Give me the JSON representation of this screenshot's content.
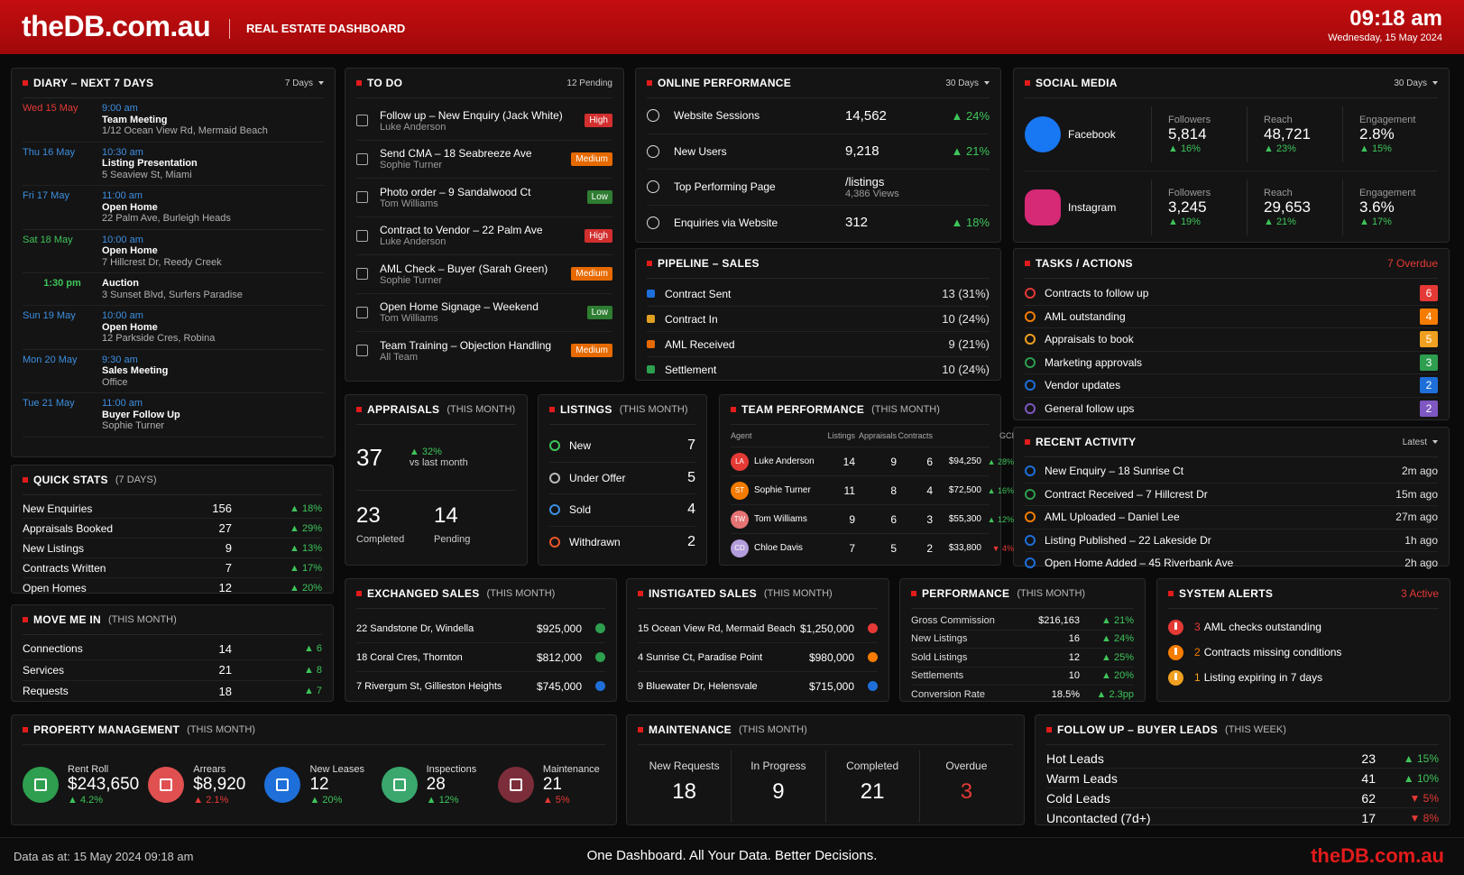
{
  "header": {
    "logo": "theDB.com.au",
    "subtitle": "REAL ESTATE DASHBOARD",
    "time": "09:18 am",
    "date": "Wednesday, 15 May 2024"
  },
  "diary": {
    "title": "DIARY – NEXT 7 DAYS",
    "filter": "7 Days",
    "items": [
      {
        "day": "Wed 15 May",
        "day_color": "#e53935",
        "time": "9:00 am",
        "time_color": "#3d8fe0",
        "event": "Team Meeting",
        "place": "1/12 Ocean View Rd, Mermaid Beach"
      },
      {
        "day": "Thu 16 May",
        "day_color": "#3d8fe0",
        "time": "10:30 am",
        "time_color": "#3d8fe0",
        "event": "Listing Presentation",
        "place": "5 Seaview St, Miami"
      },
      {
        "day": "Fri 17 May",
        "day_color": "#3d8fe0",
        "time": "11:00 am",
        "time_color": "#3d8fe0",
        "event": "Open Home",
        "place": "22 Palm Ave, Burleigh Heads"
      },
      {
        "day": "Sat 18 May",
        "day_color": "#3ec45a",
        "time": "10:00 am",
        "time_color": "#3d8fe0",
        "event": "Open Home",
        "place": "7 Hillcrest Dr, Reedy Creek"
      },
      {
        "time": "1:30 pm",
        "time_color": "#3ec45a",
        "event": "Auction",
        "place": "3 Sunset Blvd, Surfers Paradise"
      },
      {
        "day": "Sun 19 May",
        "day_color": "#3d8fe0",
        "time": "10:00 am",
        "time_color": "#3d8fe0",
        "event": "Open Home",
        "place": "12 Parkside Cres, Robina"
      },
      {
        "day": "Mon 20 May",
        "day_color": "#3d8fe0",
        "time": "9:30 am",
        "time_color": "#3d8fe0",
        "event": "Sales Meeting",
        "place": "Office"
      },
      {
        "day": "Tue 21 May",
        "day_color": "#3d8fe0",
        "time": "11:00 am",
        "time_color": "#3d8fe0",
        "event": "Buyer Follow Up",
        "place": "Sophie Turner"
      }
    ]
  },
  "todo": {
    "title": "TO DO",
    "count": "12 Pending",
    "items": [
      {
        "task": "Follow up – New Enquiry (Jack White)",
        "person": "Luke Anderson",
        "priority": "High",
        "color": "#d32f2f"
      },
      {
        "task": "Send CMA – 18 Seabreeze Ave",
        "person": "Sophie Turner",
        "priority": "Medium",
        "color": "#e66a00"
      },
      {
        "task": "Photo order – 9 Sandalwood Ct",
        "person": "Tom Williams",
        "priority": "Low",
        "color": "#2e7d32"
      },
      {
        "task": "Contract to Vendor – 22 Palm Ave",
        "person": "Luke Anderson",
        "priority": "High",
        "color": "#d32f2f"
      },
      {
        "task": "AML Check – Buyer (Sarah Green)",
        "person": "Sophie Turner",
        "priority": "Medium",
        "color": "#e66a00"
      },
      {
        "task": "Open Home Signage – Weekend",
        "person": "Tom Williams",
        "priority": "Low",
        "color": "#2e7d32"
      },
      {
        "task": "Team Training – Objection Handling",
        "person": "All Team",
        "priority": "Medium",
        "color": "#e66a00"
      }
    ]
  },
  "online": {
    "title": "ONLINE PERFORMANCE",
    "filter": "30 Days",
    "rows": [
      {
        "label": "Website Sessions",
        "value": "14,562",
        "change": "▲ 24%"
      },
      {
        "label": "New Users",
        "value": "9,218",
        "change": "▲ 21%"
      },
      {
        "label": "Top Performing Page",
        "value": "/listings",
        "sub": "4,386 Views"
      },
      {
        "label": "Enquiries via Website",
        "value": "312",
        "change": "▲ 18%"
      }
    ]
  },
  "pipeline": {
    "title": "PIPELINE – SALES",
    "rows": [
      {
        "label": "Contract Sent",
        "value": "13 (31%)",
        "color": "#1e6fd9"
      },
      {
        "label": "Contract In",
        "value": "10 (24%)",
        "color": "#e0a020"
      },
      {
        "label": "AML Received",
        "value": "9 (21%)",
        "color": "#e66a00"
      },
      {
        "label": "Settlement",
        "value": "10 (24%)",
        "color": "#2e9e4f"
      }
    ]
  },
  "social": {
    "title": "SOCIAL MEDIA",
    "filter": "30 Days",
    "networks": [
      {
        "name": "Facebook",
        "color": "#1877f2",
        "stats": [
          {
            "label": "Followers",
            "value": "5,814",
            "change": "▲ 16%"
          },
          {
            "label": "Reach",
            "value": "48,721",
            "change": "▲ 23%"
          },
          {
            "label": "Engagement",
            "value": "2.8%",
            "change": "▲ 15%"
          }
        ]
      },
      {
        "name": "Instagram",
        "color": "#d62976",
        "stats": [
          {
            "label": "Followers",
            "value": "3,245",
            "change": "▲ 19%"
          },
          {
            "label": "Reach",
            "value": "29,653",
            "change": "▲ 21%"
          },
          {
            "label": "Engagement",
            "value": "3.6%",
            "change": "▲ 17%"
          }
        ]
      }
    ]
  },
  "tasks": {
    "title": "TASKS / ACTIONS",
    "status": "7 Overdue",
    "items": [
      {
        "label": "Contracts to follow up",
        "count": "6",
        "color": "#e53935"
      },
      {
        "label": "AML outstanding",
        "count": "4",
        "color": "#f57c00"
      },
      {
        "label": "Appraisals to book",
        "count": "5",
        "color": "#f0a020"
      },
      {
        "label": "Marketing approvals",
        "count": "3",
        "color": "#2e9e4f"
      },
      {
        "label": "Vendor updates",
        "count": "2",
        "color": "#1e6fd9"
      },
      {
        "label": "General follow ups",
        "count": "2",
        "color": "#7e57c2"
      }
    ]
  },
  "recent": {
    "title": "RECENT ACTIVITY",
    "filter": "Latest",
    "items": [
      {
        "label": "New Enquiry – 18 Sunrise Ct",
        "time": "2m ago",
        "color": "#1e6fd9"
      },
      {
        "label": "Contract Received – 7 Hillcrest Dr",
        "time": "15m ago",
        "color": "#2e9e4f"
      },
      {
        "label": "AML Uploaded – Daniel Lee",
        "time": "27m ago",
        "color": "#f57c00"
      },
      {
        "label": "Listing Published – 22 Lakeside Dr",
        "time": "1h ago",
        "color": "#1e6fd9"
      },
      {
        "label": "Open Home Added – 45 Riverbank Ave",
        "time": "2h ago",
        "color": "#1e6fd9"
      }
    ]
  },
  "quick_stats": {
    "title": "QUICK STATS",
    "qualifier": "(7 DAYS)",
    "rows": [
      {
        "label": "New Enquiries",
        "value": "156",
        "change": "▲ 18%"
      },
      {
        "label": "Appraisals Booked",
        "value": "27",
        "change": "▲ 29%"
      },
      {
        "label": "New Listings",
        "value": "9",
        "change": "▲ 13%"
      },
      {
        "label": "Contracts Written",
        "value": "7",
        "change": "▲ 17%"
      },
      {
        "label": "Open Homes",
        "value": "12",
        "change": "▲ 20%"
      }
    ]
  },
  "move_me_in": {
    "title": "MOVE ME IN",
    "qualifier": "(THIS MONTH)",
    "rows": [
      {
        "label": "Connections",
        "value": "14",
        "change": "▲ 6"
      },
      {
        "label": "Services",
        "value": "21",
        "change": "▲ 8"
      },
      {
        "label": "Requests",
        "value": "18",
        "change": "▲ 7"
      }
    ]
  },
  "appraisals": {
    "title": "APPRAISALS",
    "qualifier": "(THIS MONTH)",
    "value": "37",
    "change": "▲ 32%",
    "note": "vs last month",
    "stats": [
      {
        "value": "23",
        "label": "Completed"
      },
      {
        "value": "14",
        "label": "Pending"
      }
    ]
  },
  "listings": {
    "title": "LISTINGS",
    "qualifier": "(THIS MONTH)",
    "rows": [
      {
        "label": "New",
        "value": "7",
        "color": "#3ec45a"
      },
      {
        "label": "Under Offer",
        "value": "5",
        "color": "#bbbbbb"
      },
      {
        "label": "Sold",
        "value": "4",
        "color": "#3d8fe0"
      },
      {
        "label": "Withdrawn",
        "value": "2",
        "color": "#e8562a"
      }
    ]
  },
  "team": {
    "title": "TEAM PERFORMANCE",
    "qualifier": "(THIS MONTH)",
    "headers": [
      "Agent",
      "Listings",
      "Appraisals",
      "Contracts",
      "GCI"
    ],
    "rows": [
      {
        "initials": "LA",
        "name": "Luke Anderson",
        "listings": "14",
        "appraisals": "9",
        "contracts": "6",
        "gci": "$94,250",
        "change": "▲ 28%",
        "color": "#e53935",
        "change_color": "#3ec45a"
      },
      {
        "initials": "ST",
        "name": "Sophie Turner",
        "listings": "11",
        "appraisals": "8",
        "contracts": "4",
        "gci": "$72,500",
        "change": "▲ 16%",
        "color": "#f57c00",
        "change_color": "#3ec45a"
      },
      {
        "initials": "TW",
        "name": "Tom Williams",
        "listings": "9",
        "appraisals": "6",
        "contracts": "3",
        "gci": "$55,300",
        "change": "▲ 12%",
        "color": "#e57373",
        "change_color": "#3ec45a"
      },
      {
        "initials": "CD",
        "name": "Chloe Davis",
        "listings": "7",
        "appraisals": "5",
        "contracts": "2",
        "gci": "$33,800",
        "change": "▼ 4%",
        "color": "#b39ddb",
        "change_color": "#e53935"
      }
    ]
  },
  "exchanged": {
    "title": "EXCHANGED SALES",
    "qualifier": "(THIS MONTH)",
    "rows": [
      {
        "address": "22 Sandstone Dr, Windella",
        "price": "$925,000",
        "color": "#2e9e4f"
      },
      {
        "address": "18 Coral Cres, Thornton",
        "price": "$812,000",
        "color": "#2e9e4f"
      },
      {
        "address": "7 Rivergum St, Gillieston Heights",
        "price": "$745,000",
        "color": "#1e6fd9"
      }
    ]
  },
  "instigated": {
    "title": "INSTIGATED SALES",
    "qualifier": "(THIS MONTH)",
    "rows": [
      {
        "address": "15 Ocean View Rd, Mermaid Beach",
        "price": "$1,250,000",
        "color": "#e53935"
      },
      {
        "address": "4 Sunrise Ct, Paradise Point",
        "price": "$980,000",
        "color": "#f57c00"
      },
      {
        "address": "9 Bluewater Dr, Helensvale",
        "price": "$715,000",
        "color": "#1e6fd9"
      }
    ]
  },
  "performance": {
    "title": "PERFORMANCE",
    "qualifier": "(THIS MONTH)",
    "rows": [
      {
        "label": "Gross Commission",
        "value": "$216,163",
        "change": "▲ 21%"
      },
      {
        "label": "New Listings",
        "value": "16",
        "change": "▲ 24%"
      },
      {
        "label": "Sold Listings",
        "value": "12",
        "change": "▲ 25%"
      },
      {
        "label": "Settlements",
        "value": "10",
        "change": "▲ 20%"
      },
      {
        "label": "Conversion Rate",
        "value": "18.5%",
        "change": "▲ 2.3pp"
      }
    ]
  },
  "alerts": {
    "title": "SYSTEM ALERTS",
    "status": "3 Active",
    "items": [
      {
        "count": "3",
        "text": "AML checks outstanding",
        "color": "#e53935"
      },
      {
        "count": "2",
        "text": "Contracts missing conditions",
        "color": "#f57c00"
      },
      {
        "count": "1",
        "text": "Listing expiring in 7 days",
        "color": "#f0a020"
      }
    ]
  },
  "property": {
    "title": "PROPERTY MANAGEMENT",
    "qualifier": "(THIS MONTH)",
    "items": [
      {
        "label": "Rent Roll",
        "value": "$243,650",
        "change": "▲ 4.2%",
        "color": "#2e9e4f",
        "change_color": "#3ec45a"
      },
      {
        "label": "Arrears",
        "value": "$8,920",
        "change": "▲ 2.1%",
        "color": "#e05050",
        "change_color": "#e53935"
      },
      {
        "label": "New Leases",
        "value": "12",
        "change": "▲ 20%",
        "color": "#1e6fd9",
        "change_color": "#3ec45a"
      },
      {
        "label": "Inspections",
        "value": "28",
        "change": "▲ 12%",
        "color": "#3aa76d",
        "change_color": "#3ec45a"
      },
      {
        "label": "Maintenance",
        "value": "21",
        "change": "▲ 5%",
        "color": "#7b2d3a",
        "change_color": "#e53935"
      }
    ]
  },
  "maintenance": {
    "title": "MAINTENANCE",
    "qualifier": "(THIS MONTH)",
    "stats": [
      {
        "label": "New Requests",
        "value": "18"
      },
      {
        "label": "In Progress",
        "value": "9"
      },
      {
        "label": "Completed",
        "value": "21"
      },
      {
        "label": "Overdue",
        "value": "3",
        "value_color": "#e53935"
      }
    ]
  },
  "follow_up": {
    "title": "FOLLOW UP – BUYER LEADS",
    "qualifier": "(THIS WEEK)",
    "rows": [
      {
        "label": "Hot Leads",
        "value": "23",
        "change": "▲ 15%",
        "change_color": "#3ec45a"
      },
      {
        "label": "Warm Leads",
        "value": "41",
        "change": "▲ 10%",
        "change_color": "#3ec45a"
      },
      {
        "label": "Cold Leads",
        "value": "62",
        "change": "▼ 5%",
        "change_color": "#e53935"
      },
      {
        "label": "Uncontacted (7d+)",
        "value": "17",
        "change": "▼ 8%",
        "change_color": "#e53935"
      }
    ]
  },
  "footer": {
    "as_at": "Data as at: 15 May 2024 09:18 am",
    "tagline": "One Dashboard. All Your Data. Better Decisions.",
    "logo": "theDB.com.au"
  }
}
